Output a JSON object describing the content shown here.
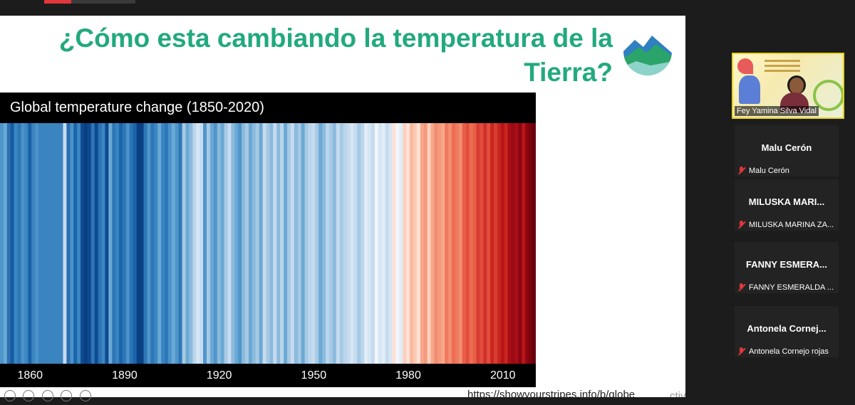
{
  "slide": {
    "title_line1": "¿Cómo esta cambiando la temperatura de la",
    "title_line2": "Tierra?",
    "url": "https://showyourstripes.info/b/globe",
    "watermark": "ctivar Windows"
  },
  "chart_data": {
    "type": "heatmap",
    "title": "Global temperature change (1850-2020)",
    "x_ticks": [
      "1860",
      "1890",
      "1920",
      "1950",
      "1980",
      "2010"
    ],
    "x_range": [
      1850,
      2020
    ],
    "stripe_colors": [
      "#4f95c9",
      "#68a9d5",
      "#2d6fb0",
      "#155ba3",
      "#3a86c2",
      "#2d77b8",
      "#4a92c8",
      "#3c86c2",
      "#1862a8",
      "#3a84c0",
      "#4a92c8",
      "#3a84c0",
      "#3a84c0",
      "#3a84c0",
      "#3a84c0",
      "#3a84c0",
      "#3a84c0",
      "#3a84c0",
      "#c6dbef",
      "#2b6db0",
      "#4a92c8",
      "#1a64aa",
      "#3c86c2",
      "#0e4a90",
      "#0a3f82",
      "#0e4a90",
      "#2d77b8",
      "#0e4a90",
      "#2a73b5",
      "#3c86c2",
      "#0e4a90",
      "#6aa9d4",
      "#2d77b8",
      "#3a84c0",
      "#1a64aa",
      "#2d77b8",
      "#4a92c8",
      "#2a73b5",
      "#1a64aa",
      "#0a3f82",
      "#0a3f82",
      "#2d77b8",
      "#4f95c9",
      "#2d77b8",
      "#3a86c2",
      "#6aa9d4",
      "#3a86c2",
      "#2d77b8",
      "#4a92c8",
      "#6aa9d4",
      "#4f95c9",
      "#2d77b8",
      "#a6c9e4",
      "#6aa9d4",
      "#8bbadd",
      "#b9d6ec",
      "#d5e6f4",
      "#c6dbef",
      "#4f95c9",
      "#a6c9e4",
      "#6aa9d4",
      "#4f95c9",
      "#8bbadd",
      "#6aa9d4",
      "#a6c9e4",
      "#c6dbef",
      "#8bbadd",
      "#6aa9d4",
      "#4f95c9",
      "#8bbadd",
      "#a6c9e4",
      "#6aa9d4",
      "#8bbadd",
      "#a6c9e4",
      "#6aa9d4",
      "#c6dbef",
      "#a6c9e4",
      "#8bbadd",
      "#c6dbef",
      "#8bbadd",
      "#b9d6ec",
      "#6aa9d4",
      "#a6c9e4",
      "#c6dbef",
      "#8bbadd",
      "#a6c9e4",
      "#6aa9d4",
      "#a6c9e4",
      "#b9d6ec",
      "#c6dbef",
      "#a6c9e4",
      "#6aa9d4",
      "#8bbadd",
      "#b9d6ec",
      "#a6c9e4",
      "#8bbadd",
      "#c6dbef",
      "#a6c9e4",
      "#b9d6ec",
      "#c6dbef",
      "#d5e6f4",
      "#c6dbef",
      "#a6c9e4",
      "#b9d6ec",
      "#e2edf7",
      "#d5e6f4",
      "#c6dbef",
      "#f2f5fa",
      "#d5e6f4",
      "#e2edf7",
      "#c6dbef",
      "#d5e6f4",
      "#fde2d5",
      "#f2f5fa",
      "#e2edf7",
      "#fbd0bd",
      "#fde2d5",
      "#f9b9a0",
      "#fcc9b2",
      "#fde2d5",
      "#f7a78c",
      "#f59a7e",
      "#fbd0bd",
      "#f7a78c",
      "#f38d71",
      "#f59a7e",
      "#f7a78c",
      "#ef7a5e",
      "#f38d71",
      "#ed6e52",
      "#ef7a5e",
      "#f38d71",
      "#e95f47",
      "#e24e3d",
      "#ed6e52",
      "#e95f47",
      "#d83d33",
      "#e24e3d",
      "#cf3128",
      "#e24e3d",
      "#c9261e",
      "#d83d33",
      "#c9261e",
      "#b8151a",
      "#c9261e",
      "#a80e16",
      "#9a0a14",
      "#a80e16",
      "#8c0611",
      "#b8151a",
      "#8c0611",
      "#7a030d",
      "#67000d"
    ]
  },
  "participants": [
    {
      "name": "Fey Yamina Silva Vidal",
      "display": "Fey Yamina Silva Vidal"
    },
    {
      "display": "Malu Cerón",
      "label": "Malu Cerón"
    },
    {
      "display": "MILUSKA MARI...",
      "label": "MILUSKA MARINA ZA..."
    },
    {
      "display": "FANNY  ESMERA...",
      "label": "FANNY ESMERALDA ..."
    },
    {
      "display": "Antonela  Cornej...",
      "label": "Antonela Cornejo rojas"
    }
  ],
  "colors": {
    "title_green": "#22a97f",
    "highlight_border": "#e6d21e",
    "mic_muted": "#e0373b"
  }
}
